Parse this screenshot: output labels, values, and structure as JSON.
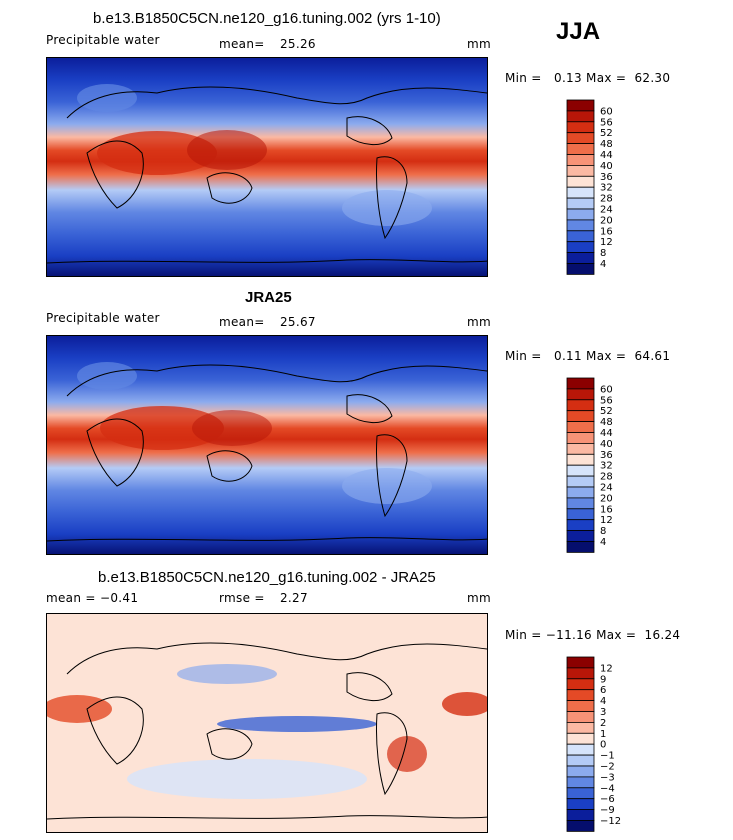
{
  "season": "JJA",
  "panels": [
    {
      "title": "b.e13.B1850C5CN.ne120_g16.tuning.002 (yrs 1-10)",
      "variable": "Precipitable water",
      "stat1_label": "mean=",
      "stat1_value": "25.26",
      "stat2_label": "",
      "stat2_value": "",
      "units": "mm",
      "range_text": "Min =   0.13 Max =  62.30"
    },
    {
      "title": "JRA25",
      "variable": "Precipitable water",
      "stat1_label": "mean=",
      "stat1_value": "25.67",
      "stat2_label": "",
      "stat2_value": "",
      "units": "mm",
      "range_text": "Min =   0.11 Max =  64.61"
    },
    {
      "title": "b.e13.B1850C5CN.ne120_g16.tuning.002 - JRA25",
      "variable": "",
      "stat1_label": "mean =",
      "stat1_value": "−0.41",
      "stat2_label": "rmse =",
      "stat2_value": "2.27",
      "units": "mm",
      "range_text": "Min = −11.16 Max =  16.24"
    }
  ],
  "chart_data": [
    {
      "type": "heatmap",
      "title": "b.e13.B1850C5CN.ne120_g16.tuning.002 (yrs 1-10)",
      "variable": "Precipitable water",
      "units": "mm",
      "mean": 25.26,
      "min": 0.13,
      "max": 62.3,
      "colorbar_levels": [
        60,
        56,
        52,
        48,
        44,
        40,
        36,
        32,
        28,
        24,
        20,
        16,
        12,
        8,
        4
      ],
      "colorbar_colors": [
        "#8b0000",
        "#b81608",
        "#d42e12",
        "#e44a26",
        "#ef6e4a",
        "#f79377",
        "#fbb9a3",
        "#fde3d6",
        "#d6e4fb",
        "#b4cbf6",
        "#8cabee",
        "#6187e3",
        "#3a63d6",
        "#1a3fc4",
        "#0b1e9b",
        "#050e6d"
      ],
      "zonal_profile": [
        {
          "lat": -90,
          "value": 2
        },
        {
          "lat": -60,
          "value": 8
        },
        {
          "lat": -40,
          "value": 16
        },
        {
          "lat": -20,
          "value": 28
        },
        {
          "lat": 0,
          "value": 44
        },
        {
          "lat": 10,
          "value": 52
        },
        {
          "lat": 20,
          "value": 44
        },
        {
          "lat": 40,
          "value": 24
        },
        {
          "lat": 60,
          "value": 14
        },
        {
          "lat": 90,
          "value": 6
        }
      ]
    },
    {
      "type": "heatmap",
      "title": "JRA25",
      "variable": "Precipitable water",
      "units": "mm",
      "mean": 25.67,
      "min": 0.11,
      "max": 64.61,
      "colorbar_levels": [
        60,
        56,
        52,
        48,
        44,
        40,
        36,
        32,
        28,
        24,
        20,
        16,
        12,
        8,
        4
      ],
      "colorbar_colors": [
        "#8b0000",
        "#b81608",
        "#d42e12",
        "#e44a26",
        "#ef6e4a",
        "#f79377",
        "#fbb9a3",
        "#fde3d6",
        "#d6e4fb",
        "#b4cbf6",
        "#8cabee",
        "#6187e3",
        "#3a63d6",
        "#1a3fc4",
        "#0b1e9b",
        "#050e6d"
      ],
      "zonal_profile": [
        {
          "lat": -90,
          "value": 2
        },
        {
          "lat": -60,
          "value": 8
        },
        {
          "lat": -40,
          "value": 16
        },
        {
          "lat": -20,
          "value": 28
        },
        {
          "lat": 0,
          "value": 44
        },
        {
          "lat": 10,
          "value": 52
        },
        {
          "lat": 20,
          "value": 44
        },
        {
          "lat": 40,
          "value": 24
        },
        {
          "lat": 60,
          "value": 14
        },
        {
          "lat": 90,
          "value": 6
        }
      ]
    },
    {
      "type": "heatmap",
      "title": "b.e13.B1850C5CN.ne120_g16.tuning.002 - JRA25",
      "units": "mm",
      "mean": -0.41,
      "rmse": 2.27,
      "min": -11.16,
      "max": 16.24,
      "colorbar_levels": [
        "12",
        "9",
        "6",
        "4",
        "3",
        "2",
        "1",
        "0",
        "−1",
        "−2",
        "−3",
        "−4",
        "−6",
        "−9",
        "−12"
      ],
      "colorbar_colors": [
        "#8b0000",
        "#b81608",
        "#d42e12",
        "#e44a26",
        "#ef6e4a",
        "#f79377",
        "#fbb9a3",
        "#fde3d6",
        "#d6e4fb",
        "#b4cbf6",
        "#8cabee",
        "#6187e3",
        "#3a63d6",
        "#1a3fc4",
        "#0b1e9b",
        "#050e6d"
      ]
    }
  ]
}
